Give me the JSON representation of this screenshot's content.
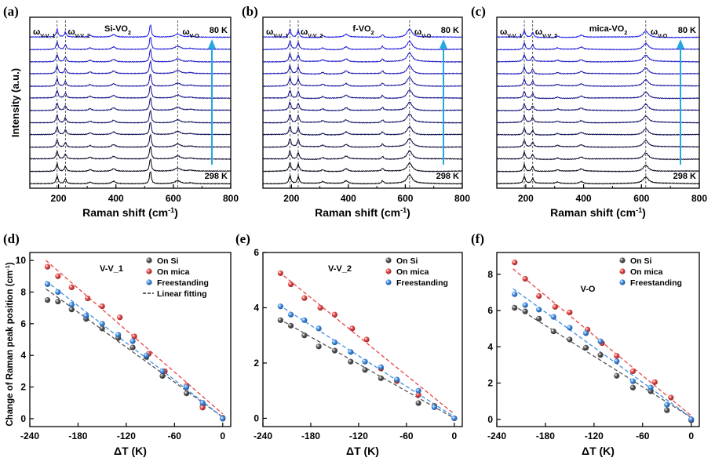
{
  "figure": {
    "panel_letters": [
      "(a)",
      "(b)",
      "(c)",
      "(d)",
      "(e)",
      "(f)"
    ],
    "colors": {
      "cold_end": "#1a18e8",
      "warm_end": "#000000",
      "arrow": "#25a8e0",
      "on_si": "#555555",
      "on_mica": "#e84545",
      "freestanding": "#3f8ee6"
    }
  },
  "chart_data": [
    {
      "type": "line",
      "panel": "(a)",
      "title": "Si-VO2",
      "xlabel": "Raman shift (cm-1)",
      "ylabel": "Intensity (a.u.)",
      "xlim": [
        100,
        800
      ],
      "xticks": [
        200,
        400,
        600,
        800
      ],
      "temperature_high_label": "298 K",
      "temperature_low_label": "80 K",
      "n_spectra": 13,
      "peaks": [
        {
          "center": 195,
          "height": 0.55,
          "width": 4
        },
        {
          "center": 224,
          "height": 0.35,
          "width": 4
        },
        {
          "center": 310,
          "height": 0.12,
          "width": 6
        },
        {
          "center": 392,
          "height": 0.18,
          "width": 8
        },
        {
          "center": 520,
          "height": 0.95,
          "width": 3.5
        },
        {
          "center": 615,
          "height": 0.22,
          "width": 12
        },
        {
          "center": 660,
          "height": 0.06,
          "width": 10
        }
      ],
      "peak_annotations": [
        {
          "label_main": "ω",
          "label_sub": "V-V_1",
          "x": 195
        },
        {
          "label_main": "ω",
          "label_sub": "V-V_2",
          "x": 224
        },
        {
          "label_main": "ω",
          "label_sub": "V-O",
          "x": 615
        }
      ]
    },
    {
      "type": "line",
      "panel": "(b)",
      "title": "f-VO2",
      "xlabel": "Raman shift (cm-1)",
      "ylabel": "",
      "xlim": [
        100,
        800
      ],
      "xticks": [
        200,
        400,
        600,
        800
      ],
      "temperature_high_label": "298 K",
      "temperature_low_label": "80 K",
      "n_spectra": 13,
      "peaks": [
        {
          "center": 195,
          "height": 0.6,
          "width": 4
        },
        {
          "center": 224,
          "height": 0.5,
          "width": 4
        },
        {
          "center": 310,
          "height": 0.12,
          "width": 6
        },
        {
          "center": 392,
          "height": 0.2,
          "width": 8
        },
        {
          "center": 520,
          "height": 0.2,
          "width": 4
        },
        {
          "center": 615,
          "height": 0.6,
          "width": 11
        }
      ],
      "peak_annotations": [
        {
          "label_main": "ω",
          "label_sub": "V-V_1",
          "x": 195
        },
        {
          "label_main": "ω",
          "label_sub": "V-V_2",
          "x": 224
        },
        {
          "label_main": "ω",
          "label_sub": "V-O",
          "x": 615
        }
      ]
    },
    {
      "type": "line",
      "panel": "(c)",
      "title": "mica-VO2",
      "xlabel": "Raman shift (cm-1)",
      "ylabel": "",
      "xlim": [
        100,
        800
      ],
      "xticks": [
        200,
        400,
        600,
        800
      ],
      "temperature_high_label": "298 K",
      "temperature_low_label": "80 K",
      "n_spectra": 13,
      "peaks": [
        {
          "center": 195,
          "height": 0.5,
          "width": 4
        },
        {
          "center": 224,
          "height": 0.35,
          "width": 4
        },
        {
          "center": 310,
          "height": 0.1,
          "width": 6
        },
        {
          "center": 392,
          "height": 0.15,
          "width": 8
        },
        {
          "center": 615,
          "height": 0.45,
          "width": 11
        }
      ],
      "peak_annotations": [
        {
          "label_main": "ω",
          "label_sub": "V-V_1",
          "x": 195
        },
        {
          "label_main": "ω",
          "label_sub": "V-V_2",
          "x": 224
        },
        {
          "label_main": "ω",
          "label_sub": "V-O",
          "x": 615
        }
      ]
    },
    {
      "type": "scatter",
      "panel": "(d)",
      "title": "V-V_1",
      "xlabel": "ΔT (K)",
      "ylabel": "Change of Raman peak position (cm-1)",
      "xlim": [
        -240,
        10
      ],
      "ylim": [
        -0.5,
        10.5
      ],
      "xticks": [
        -240,
        -180,
        -120,
        -60,
        0
      ],
      "yticks": [
        0,
        2,
        4,
        6,
        8,
        10
      ],
      "legend": [
        "On Si",
        "On mica",
        "Freestanding",
        "Linear fitting"
      ],
      "series": [
        {
          "name": "On Si",
          "x": [
            -218,
            -205,
            -188,
            -170,
            -150,
            -130,
            -112,
            -95,
            -75,
            -45,
            -25,
            0
          ],
          "y": [
            7.5,
            7.4,
            6.9,
            6.3,
            5.7,
            5.1,
            4.5,
            3.9,
            2.7,
            1.6,
            0.8,
            0.05
          ],
          "fit": [
            [
              -220,
              8.2
            ],
            [
              0,
              0.1
            ]
          ]
        },
        {
          "name": "On mica",
          "x": [
            -218,
            -205,
            -188,
            -168,
            -150,
            -128,
            -110,
            -92,
            -72,
            -45,
            -25,
            0
          ],
          "y": [
            9.6,
            9.0,
            8.3,
            7.6,
            7.1,
            6.4,
            5.2,
            4.1,
            3.0,
            2.1,
            0.7,
            0.0
          ],
          "fit": [
            [
              -220,
              10.0
            ],
            [
              0,
              0.3
            ]
          ]
        },
        {
          "name": "Freestanding",
          "x": [
            -218,
            -205,
            -188,
            -170,
            -150,
            -130,
            -112,
            -95,
            -75,
            -45,
            -25,
            0
          ],
          "y": [
            8.5,
            8.0,
            7.2,
            6.5,
            6.0,
            5.3,
            4.9,
            4.0,
            3.0,
            2.0,
            1.0,
            0.0
          ],
          "fit": [
            [
              -220,
              8.7
            ],
            [
              0,
              0.1
            ]
          ]
        }
      ]
    },
    {
      "type": "scatter",
      "panel": "(e)",
      "title": "V-V_2",
      "xlabel": "ΔT (K)",
      "ylabel": "",
      "xlim": [
        -240,
        10
      ],
      "ylim": [
        -0.3,
        6
      ],
      "xticks": [
        -240,
        -180,
        -120,
        -60,
        0
      ],
      "yticks": [
        0,
        2,
        4,
        6
      ],
      "legend": [
        "On Si",
        "On mica",
        "Freestanding"
      ],
      "series": [
        {
          "name": "On Si",
          "x": [
            -218,
            -205,
            -188,
            -170,
            -150,
            -130,
            -112,
            -92,
            -72,
            -45,
            -25,
            0
          ],
          "y": [
            3.55,
            3.35,
            3.0,
            2.6,
            2.45,
            2.05,
            1.75,
            1.45,
            1.35,
            0.55,
            0.45,
            0.0
          ],
          "fit": [
            [
              -220,
              3.6
            ],
            [
              0,
              0.0
            ]
          ]
        },
        {
          "name": "On mica",
          "x": [
            -218,
            -205,
            -188,
            -168,
            -150,
            -128,
            -110,
            -92,
            -72,
            -45,
            -25,
            0
          ],
          "y": [
            5.25,
            4.85,
            4.35,
            4.0,
            3.75,
            3.25,
            2.85,
            1.8,
            1.35,
            0.85,
            0.4,
            0.0
          ],
          "fit": [
            [
              -220,
              5.3
            ],
            [
              0,
              0.15
            ]
          ]
        },
        {
          "name": "Freestanding",
          "x": [
            -218,
            -205,
            -188,
            -170,
            -150,
            -130,
            -112,
            -92,
            -72,
            -45,
            -25,
            0
          ],
          "y": [
            4.05,
            3.75,
            3.55,
            3.25,
            2.75,
            2.4,
            2.05,
            1.85,
            1.4,
            1.0,
            0.4,
            0.0
          ],
          "fit": [
            [
              -220,
              4.1
            ],
            [
              0,
              0.05
            ]
          ]
        }
      ]
    },
    {
      "type": "scatter",
      "panel": "(f)",
      "title": "V-O",
      "xlabel": "ΔT (K)",
      "ylabel": "",
      "xlim": [
        -240,
        10
      ],
      "ylim": [
        -0.4,
        9.2
      ],
      "xticks": [
        -240,
        -180,
        -120,
        -60,
        0
      ],
      "yticks": [
        0,
        2,
        4,
        6,
        8
      ],
      "legend": [
        "On Si",
        "On mica",
        "Freestanding"
      ],
      "series": [
        {
          "name": "On Si",
          "x": [
            -218,
            -205,
            -188,
            -170,
            -150,
            -130,
            -112,
            -92,
            -72,
            -50,
            -30,
            0
          ],
          "y": [
            6.15,
            5.95,
            5.55,
            4.85,
            4.4,
            3.95,
            3.55,
            2.4,
            1.75,
            1.55,
            0.5,
            -0.05
          ],
          "fit": [
            [
              -220,
              6.3
            ],
            [
              0,
              0.1
            ]
          ]
        },
        {
          "name": "On mica",
          "x": [
            -218,
            -205,
            -188,
            -168,
            -150,
            -128,
            -110,
            -92,
            -72,
            -45,
            -25,
            0
          ],
          "y": [
            8.65,
            7.75,
            6.8,
            6.2,
            5.9,
            4.95,
            4.2,
            3.5,
            2.65,
            2.05,
            1.2,
            0.0
          ],
          "fit": [
            [
              -220,
              8.3
            ],
            [
              0,
              0.2
            ]
          ]
        },
        {
          "name": "Freestanding",
          "x": [
            -218,
            -205,
            -188,
            -170,
            -150,
            -130,
            -112,
            -92,
            -72,
            -50,
            -30,
            0
          ],
          "y": [
            6.9,
            6.3,
            6.05,
            5.65,
            5.05,
            4.75,
            4.3,
            3.2,
            2.1,
            1.75,
            0.8,
            0.0
          ],
          "fit": [
            [
              -220,
              7.2
            ],
            [
              0,
              0.1
            ]
          ]
        }
      ]
    }
  ]
}
